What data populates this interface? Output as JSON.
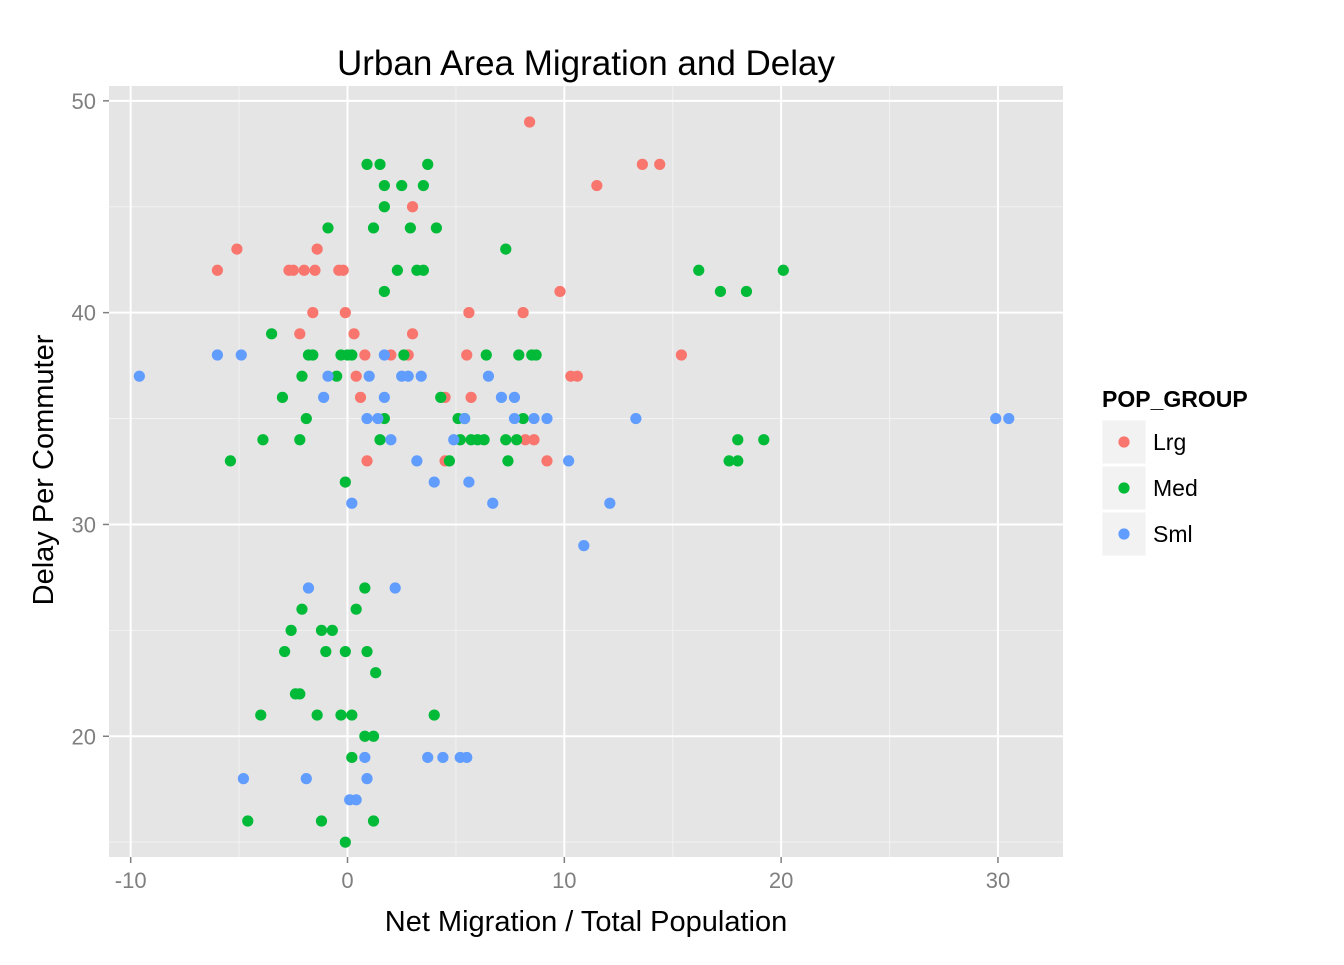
{
  "colors": {
    "panel_background": "#E5E5E5",
    "grid_major": "#FFFFFF",
    "grid_minor": "#F2F2F2",
    "tick_text": "#7F7F7F",
    "title_text": "#000000",
    "legend_key_background": "#F2F2F2",
    "Lrg": "#F8766D",
    "Med": "#00BA38",
    "Sml": "#619CFF"
  },
  "chart_data": {
    "type": "scatter",
    "title": "Urban Area Migration and Delay",
    "xlabel": "Net Migration / Total Population",
    "ylabel": "Delay Per Commuter",
    "xlim": [
      -11,
      33
    ],
    "ylim": [
      14.3,
      50.7
    ],
    "x_ticks": [
      -10,
      0,
      10,
      20,
      30
    ],
    "x_tick_labels": [
      "-10",
      "0",
      "10",
      "20",
      "30"
    ],
    "y_ticks": [
      20,
      30,
      40,
      50
    ],
    "y_tick_labels": [
      "20",
      "30",
      "40",
      "50"
    ],
    "x_minor": [
      -5,
      5,
      15,
      25
    ],
    "y_minor": [
      15,
      25,
      35,
      45
    ],
    "grid": true,
    "legend": {
      "title": "POP_GROUP",
      "placement": "right"
    },
    "series": [
      {
        "name": "Lrg",
        "color": "#F8766D",
        "points": [
          [
            8.4,
            49
          ],
          [
            13.6,
            47
          ],
          [
            14.4,
            47
          ],
          [
            11.5,
            46
          ],
          [
            3.0,
            45
          ],
          [
            -5.1,
            43
          ],
          [
            -1.4,
            43
          ],
          [
            -6.0,
            42
          ],
          [
            -2.7,
            42
          ],
          [
            -2.5,
            42
          ],
          [
            -2.0,
            42
          ],
          [
            -1.5,
            42
          ],
          [
            -0.4,
            42
          ],
          [
            -0.2,
            42
          ],
          [
            9.8,
            41
          ],
          [
            -1.6,
            40
          ],
          [
            -0.1,
            40
          ],
          [
            5.6,
            40
          ],
          [
            8.1,
            40
          ],
          [
            -2.2,
            39
          ],
          [
            0.3,
            39
          ],
          [
            3.0,
            39
          ],
          [
            0.8,
            38
          ],
          [
            2.0,
            38
          ],
          [
            2.8,
            38
          ],
          [
            5.5,
            38
          ],
          [
            15.4,
            38
          ],
          [
            0.4,
            37
          ],
          [
            10.3,
            37
          ],
          [
            10.6,
            37
          ],
          [
            0.6,
            36
          ],
          [
            4.5,
            36
          ],
          [
            5.7,
            36
          ],
          [
            8.2,
            34
          ],
          [
            8.6,
            34
          ],
          [
            0.9,
            33
          ],
          [
            4.5,
            33
          ],
          [
            9.2,
            33
          ]
        ]
      },
      {
        "name": "Med",
        "color": "#00BA38",
        "points": [
          [
            0.9,
            47
          ],
          [
            1.5,
            47
          ],
          [
            3.7,
            47
          ],
          [
            1.7,
            46
          ],
          [
            2.5,
            46
          ],
          [
            3.5,
            46
          ],
          [
            1.7,
            45
          ],
          [
            -0.9,
            44
          ],
          [
            1.2,
            44
          ],
          [
            2.9,
            44
          ],
          [
            4.1,
            44
          ],
          [
            7.3,
            43
          ],
          [
            2.3,
            42
          ],
          [
            3.2,
            42
          ],
          [
            3.5,
            42
          ],
          [
            16.2,
            42
          ],
          [
            20.1,
            42
          ],
          [
            1.7,
            41
          ],
          [
            17.2,
            41
          ],
          [
            18.4,
            41
          ],
          [
            -3.5,
            39
          ],
          [
            -1.8,
            38
          ],
          [
            -1.6,
            38
          ],
          [
            -0.3,
            38
          ],
          [
            0.0,
            38
          ],
          [
            0.2,
            38
          ],
          [
            2.6,
            38
          ],
          [
            6.4,
            38
          ],
          [
            7.9,
            38
          ],
          [
            8.5,
            38
          ],
          [
            8.7,
            38
          ],
          [
            -2.1,
            37
          ],
          [
            -0.5,
            37
          ],
          [
            -3.0,
            36
          ],
          [
            4.3,
            36
          ],
          [
            -1.9,
            35
          ],
          [
            1.7,
            35
          ],
          [
            5.1,
            35
          ],
          [
            5.4,
            35
          ],
          [
            8.1,
            35
          ],
          [
            -3.9,
            34
          ],
          [
            -2.2,
            34
          ],
          [
            1.5,
            34
          ],
          [
            5.2,
            34
          ],
          [
            5.7,
            34
          ],
          [
            6.0,
            34
          ],
          [
            6.3,
            34
          ],
          [
            7.3,
            34
          ],
          [
            7.8,
            34
          ],
          [
            18.0,
            34
          ],
          [
            19.2,
            34
          ],
          [
            -5.4,
            33
          ],
          [
            4.7,
            33
          ],
          [
            7.4,
            33
          ],
          [
            17.6,
            33
          ],
          [
            18.0,
            33
          ],
          [
            -0.1,
            32
          ],
          [
            0.8,
            27
          ],
          [
            -2.1,
            26
          ],
          [
            0.4,
            26
          ],
          [
            -2.6,
            25
          ],
          [
            -1.2,
            25
          ],
          [
            -0.7,
            25
          ],
          [
            -2.9,
            24
          ],
          [
            -1.0,
            24
          ],
          [
            -0.1,
            24
          ],
          [
            0.9,
            24
          ],
          [
            1.3,
            23
          ],
          [
            -2.4,
            22
          ],
          [
            -2.2,
            22
          ],
          [
            -4.0,
            21
          ],
          [
            -1.4,
            21
          ],
          [
            -0.3,
            21
          ],
          [
            0.2,
            21
          ],
          [
            4.0,
            21
          ],
          [
            0.8,
            20
          ],
          [
            1.2,
            20
          ],
          [
            0.2,
            19
          ],
          [
            -4.6,
            16
          ],
          [
            -1.2,
            16
          ],
          [
            1.2,
            16
          ],
          [
            -0.1,
            15
          ]
        ]
      },
      {
        "name": "Sml",
        "color": "#619CFF",
        "points": [
          [
            -9.6,
            37
          ],
          [
            -6.0,
            38
          ],
          [
            -4.9,
            38
          ],
          [
            1.7,
            38
          ],
          [
            -0.9,
            37
          ],
          [
            1.0,
            37
          ],
          [
            2.5,
            37
          ],
          [
            2.8,
            37
          ],
          [
            3.4,
            37
          ],
          [
            6.5,
            37
          ],
          [
            -1.1,
            36
          ],
          [
            1.7,
            36
          ],
          [
            7.1,
            36
          ],
          [
            7.7,
            36
          ],
          [
            0.9,
            35
          ],
          [
            1.4,
            35
          ],
          [
            5.4,
            35
          ],
          [
            7.7,
            35
          ],
          [
            8.6,
            35
          ],
          [
            9.2,
            35
          ],
          [
            13.3,
            35
          ],
          [
            29.9,
            35
          ],
          [
            30.5,
            35
          ],
          [
            2.0,
            34
          ],
          [
            4.9,
            34
          ],
          [
            3.2,
            33
          ],
          [
            10.2,
            33
          ],
          [
            4.0,
            32
          ],
          [
            5.6,
            32
          ],
          [
            0.2,
            31
          ],
          [
            6.7,
            31
          ],
          [
            12.1,
            31
          ],
          [
            10.9,
            29
          ],
          [
            -1.8,
            27
          ],
          [
            2.2,
            27
          ],
          [
            0.8,
            19
          ],
          [
            3.7,
            19
          ],
          [
            4.4,
            19
          ],
          [
            5.2,
            19
          ],
          [
            5.5,
            19
          ],
          [
            -4.8,
            18
          ],
          [
            -1.9,
            18
          ],
          [
            0.9,
            18
          ],
          [
            0.1,
            17
          ],
          [
            0.4,
            17
          ]
        ]
      }
    ]
  }
}
